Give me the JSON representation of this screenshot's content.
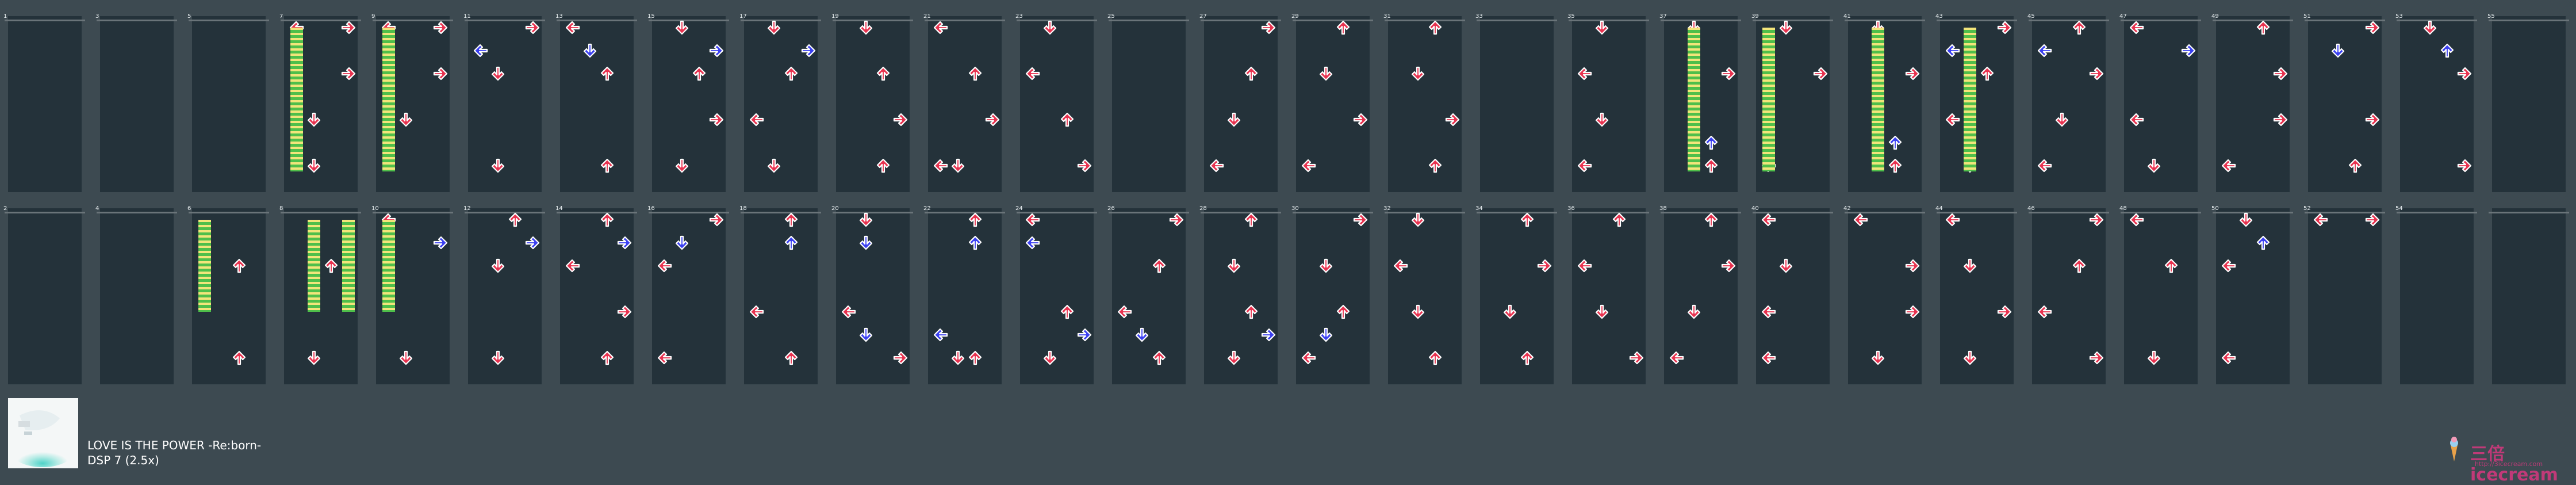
{
  "song": {
    "title": "LOVE IS THE POWER -Re:born-",
    "difficulty": "DSP 7 (2.5x)"
  },
  "logo": {
    "brand": "三倍icecream",
    "url": "http://3icecream.com"
  },
  "chart": {
    "columns": 28,
    "rows": 2,
    "measure_numbers": {
      "top": [
        "1",
        "3",
        "5",
        "7",
        "9",
        "11",
        "13",
        "15",
        "17",
        "19",
        "21",
        "23",
        "25",
        "27",
        "29",
        "31",
        "33",
        "35",
        "37",
        "39",
        "41",
        "43",
        "45",
        "47",
        "49",
        "51",
        "53",
        "55"
      ],
      "bottom": [
        "2",
        "4",
        "6",
        "8",
        "10",
        "12",
        "14",
        "16",
        "18",
        "20",
        "22",
        "24",
        "26",
        "28",
        "30",
        "32",
        "34",
        "36",
        "38",
        "40",
        "42",
        "44",
        "46",
        "48",
        "50",
        "52",
        "54",
        ""
      ]
    },
    "colors": {
      "background": "#3d4a51",
      "column": "#24323a",
      "beat_line": "#6a7479",
      "quarter_arrow": "#e8324f",
      "eighth_arrow": "#3a3ff0",
      "hold_top": "#f2e57a",
      "hold_bottom": "#4fbf4a"
    },
    "notes": {
      "top": [
        [],
        [],
        [],
        [
          [
            "L",
            0
          ],
          [
            "R",
            0
          ],
          [
            "R",
            2
          ],
          [
            "D",
            4
          ],
          [
            "D",
            6
          ]
        ],
        [
          [
            "L",
            0
          ],
          [
            "R",
            0
          ],
          [
            "R",
            2
          ],
          [
            "D",
            4
          ]
        ],
        [
          [
            "R",
            0
          ],
          [
            "L",
            1
          ],
          [
            "D",
            2
          ],
          [
            "D",
            6
          ]
        ],
        [
          [
            "L",
            0
          ],
          [
            "D",
            1
          ],
          [
            "U",
            2
          ],
          [
            "U",
            6
          ]
        ],
        [
          [
            "D",
            0
          ],
          [
            "R",
            1
          ],
          [
            "U",
            2
          ],
          [
            "R",
            4
          ],
          [
            "D",
            6
          ]
        ],
        [
          [
            "D",
            0
          ],
          [
            "R",
            1
          ],
          [
            "U",
            2
          ],
          [
            "L",
            4
          ],
          [
            "D",
            6
          ]
        ],
        [
          [
            "D",
            0
          ],
          [
            "U",
            2
          ],
          [
            "R",
            4
          ],
          [
            "U",
            6
          ]
        ],
        [
          [
            "L",
            0
          ],
          [
            "U",
            2
          ],
          [
            "R",
            4
          ],
          [
            "L",
            6
          ],
          [
            "D",
            6
          ]
        ],
        [
          [
            "D",
            0
          ],
          [
            "L",
            2
          ],
          [
            "U",
            4
          ],
          [
            "R",
            6
          ]
        ],
        [],
        [
          [
            "R",
            0
          ],
          [
            "U",
            2
          ],
          [
            "D",
            4
          ],
          [
            "L",
            6
          ]
        ],
        [
          [
            "U",
            0
          ],
          [
            "D",
            2
          ],
          [
            "R",
            4
          ],
          [
            "L",
            6
          ]
        ],
        [
          [
            "U",
            0
          ],
          [
            "D",
            2
          ],
          [
            "R",
            4
          ],
          [
            "U",
            6
          ]
        ],
        [],
        [
          [
            "D",
            0
          ],
          [
            "L",
            2
          ],
          [
            "D",
            4
          ],
          [
            "L",
            6
          ]
        ],
        [
          [
            "D",
            0
          ],
          [
            "R",
            2
          ],
          [
            "U",
            5
          ],
          [
            "U",
            6
          ]
        ],
        [
          [
            "D",
            0
          ],
          [
            "R",
            2
          ],
          [
            "L",
            6
          ]
        ],
        [
          [
            "D",
            0
          ],
          [
            "R",
            2
          ],
          [
            "U",
            5
          ],
          [
            "U",
            6
          ]
        ],
        [
          [
            "R",
            0
          ],
          [
            "L",
            1
          ],
          [
            "U",
            2
          ],
          [
            "L",
            4
          ],
          [
            "D",
            6
          ]
        ],
        [
          [
            "U",
            0
          ],
          [
            "L",
            1
          ],
          [
            "R",
            2
          ],
          [
            "D",
            4
          ],
          [
            "L",
            6
          ]
        ],
        [
          [
            "L",
            0
          ],
          [
            "R",
            1
          ],
          [
            "L",
            4
          ],
          [
            "D",
            6
          ]
        ],
        [
          [
            "U",
            0
          ],
          [
            "R",
            2
          ],
          [
            "R",
            4
          ],
          [
            "L",
            6
          ]
        ],
        [
          [
            "R",
            0
          ],
          [
            "D",
            1
          ],
          [
            "R",
            4
          ],
          [
            "U",
            6
          ]
        ],
        [
          [
            "D",
            0
          ],
          [
            "U",
            1
          ],
          [
            "R",
            2
          ],
          [
            "R",
            6
          ]
        ],
        []
      ],
      "bottom": [
        [],
        [],
        [
          [
            "U",
            2
          ],
          [
            "U",
            6
          ]
        ],
        [
          [
            "U",
            2
          ],
          [
            "D",
            6
          ]
        ],
        [
          [
            "L",
            0
          ],
          [
            "R",
            1
          ],
          [
            "D",
            6
          ]
        ],
        [
          [
            "U",
            0
          ],
          [
            "R",
            1
          ],
          [
            "D",
            2
          ],
          [
            "D",
            6
          ]
        ],
        [
          [
            "U",
            0
          ],
          [
            "R",
            1
          ],
          [
            "L",
            2
          ],
          [
            "R",
            4
          ],
          [
            "U",
            6
          ]
        ],
        [
          [
            "R",
            0
          ],
          [
            "D",
            1
          ],
          [
            "L",
            2
          ],
          [
            "L",
            6
          ]
        ],
        [
          [
            "U",
            0
          ],
          [
            "U",
            1
          ],
          [
            "L",
            4
          ],
          [
            "U",
            6
          ]
        ],
        [
          [
            "D",
            0
          ],
          [
            "D",
            1
          ],
          [
            "L",
            4
          ],
          [
            "D",
            5
          ],
          [
            "R",
            6
          ]
        ],
        [
          [
            "U",
            0
          ],
          [
            "U",
            1
          ],
          [
            "L",
            5
          ],
          [
            "U",
            6
          ],
          [
            "D",
            6
          ]
        ],
        [
          [
            "L",
            0
          ],
          [
            "L",
            1
          ],
          [
            "U",
            4
          ],
          [
            "R",
            5
          ],
          [
            "D",
            6
          ]
        ],
        [
          [
            "R",
            0
          ],
          [
            "U",
            2
          ],
          [
            "L",
            4
          ],
          [
            "D",
            5
          ],
          [
            "U",
            6
          ]
        ],
        [
          [
            "U",
            0
          ],
          [
            "D",
            2
          ],
          [
            "U",
            4
          ],
          [
            "R",
            5
          ],
          [
            "D",
            6
          ]
        ],
        [
          [
            "R",
            0
          ],
          [
            "D",
            2
          ],
          [
            "U",
            4
          ],
          [
            "D",
            5
          ],
          [
            "L",
            6
          ]
        ],
        [
          [
            "D",
            0
          ],
          [
            "L",
            2
          ],
          [
            "D",
            4
          ],
          [
            "U",
            6
          ]
        ],
        [
          [
            "U",
            0
          ],
          [
            "R",
            2
          ],
          [
            "D",
            4
          ],
          [
            "U",
            6
          ]
        ],
        [
          [
            "U",
            0
          ],
          [
            "L",
            2
          ],
          [
            "D",
            4
          ],
          [
            "R",
            6
          ]
        ],
        [
          [
            "U",
            0
          ],
          [
            "R",
            2
          ],
          [
            "D",
            4
          ],
          [
            "L",
            6
          ]
        ],
        [
          [
            "L",
            0
          ],
          [
            "D",
            2
          ],
          [
            "L",
            4
          ],
          [
            "L",
            6
          ]
        ],
        [
          [
            "L",
            0
          ],
          [
            "R",
            2
          ],
          [
            "R",
            4
          ],
          [
            "D",
            6
          ]
        ],
        [
          [
            "L",
            0
          ],
          [
            "D",
            2
          ],
          [
            "R",
            4
          ],
          [
            "D",
            6
          ]
        ],
        [
          [
            "R",
            0
          ],
          [
            "U",
            2
          ],
          [
            "L",
            4
          ],
          [
            "R",
            6
          ]
        ],
        [
          [
            "L",
            0
          ],
          [
            "U",
            2
          ],
          [
            "D",
            6
          ]
        ],
        [
          [
            "D",
            0
          ],
          [
            "U",
            1
          ],
          [
            "L",
            2
          ],
          [
            "L",
            6
          ]
        ],
        [
          [
            "L",
            0
          ],
          [
            "R",
            0
          ]
        ],
        [],
        []
      ]
    },
    "holds": {
      "top": [
        [
          18,
          "down"
        ],
        [
          19,
          "left"
        ],
        [
          20,
          "down"
        ],
        [
          21,
          "down"
        ],
        [
          3,
          "left"
        ],
        [
          4,
          "left"
        ]
      ],
      "bottom": [
        [
          2,
          "left"
        ],
        [
          3,
          "down"
        ],
        [
          3,
          "right"
        ],
        [
          4,
          "left"
        ]
      ]
    }
  }
}
